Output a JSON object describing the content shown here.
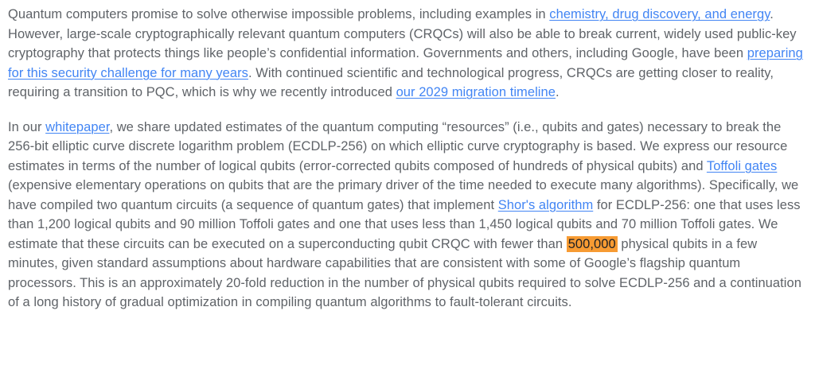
{
  "colors": {
    "background": "#ffffff",
    "body_text": "#5f6368",
    "link": "#4285f4",
    "highlight_background": "#f79b33",
    "highlight_text": "#202124"
  },
  "article": {
    "paragraphs": [
      {
        "segments": [
          {
            "type": "text",
            "name": "body-text",
            "text": "Quantum computers promise to solve otherwise impossible problems, including examples in "
          },
          {
            "type": "link",
            "name": "link-chemistry-drug-discovery-and-energy",
            "text": "chemistry, drug discovery, and energy"
          },
          {
            "type": "text",
            "name": "body-text",
            "text": ". However, large-scale cryptographically relevant quantum computers (CRQCs) will also be able to break current, widely used public-key cryptography that protects things like people’s confidential information. Governments and others, including Google, have been "
          },
          {
            "type": "link",
            "name": "link-preparing-for-this-security-challenge",
            "text": "preparing for this security challenge for many years"
          },
          {
            "type": "text",
            "name": "body-text",
            "text": ". With continued scientific and technological progress, CRQCs are getting closer to reality, requiring a transition to PQC, which is why we recently introduced "
          },
          {
            "type": "link",
            "name": "link-our-2029-migration-timeline",
            "text": "our 2029 migration timeline"
          },
          {
            "type": "text",
            "name": "body-text",
            "text": "."
          }
        ]
      },
      {
        "segments": [
          {
            "type": "text",
            "name": "body-text",
            "text": "In our "
          },
          {
            "type": "link",
            "name": "link-whitepaper",
            "text": "whitepaper"
          },
          {
            "type": "text",
            "name": "body-text",
            "text": ", we share updated estimates of the quantum computing “resources” (i.e., qubits and gates) necessary to break the 256-bit elliptic curve discrete logarithm problem (ECDLP-256) on which elliptic curve cryptography is based. We express our resource estimates in terms of the number of logical qubits (error-corrected qubits composed of hundreds of physical qubits) and "
          },
          {
            "type": "link",
            "name": "link-toffoli-gates",
            "text": "Toffoli gates"
          },
          {
            "type": "text",
            "name": "body-text",
            "text": " (expensive elementary operations on qubits that are the primary driver of the time needed to execute many algorithms). Specifically, we have compiled two quantum circuits (a sequence of quantum gates) that implement "
          },
          {
            "type": "link",
            "name": "link-shors-algorithm",
            "text": "Shor's algorithm"
          },
          {
            "type": "text",
            "name": "body-text",
            "text": " for ECDLP-256: one that uses less than 1,200 logical qubits and 90 million Toffoli gates and one that uses less than 1,450 logical qubits and 70 million Toffoli gates. We estimate that these circuits can be executed on a superconducting qubit CRQC with fewer than "
          },
          {
            "type": "highlight",
            "name": "find-highlight-500000",
            "text": "500,000"
          },
          {
            "type": "text",
            "name": "body-text",
            "text": " physical qubits in a few minutes, given standard assumptions about hardware capabilities that are consistent with some of Google’s flagship quantum processors. This is an approximately 20-fold reduction in the number of physical qubits required to solve ECDLP-256 and a continuation of a long history of gradual optimization in compiling quantum algorithms to fault-tolerant circuits."
          }
        ]
      }
    ]
  }
}
